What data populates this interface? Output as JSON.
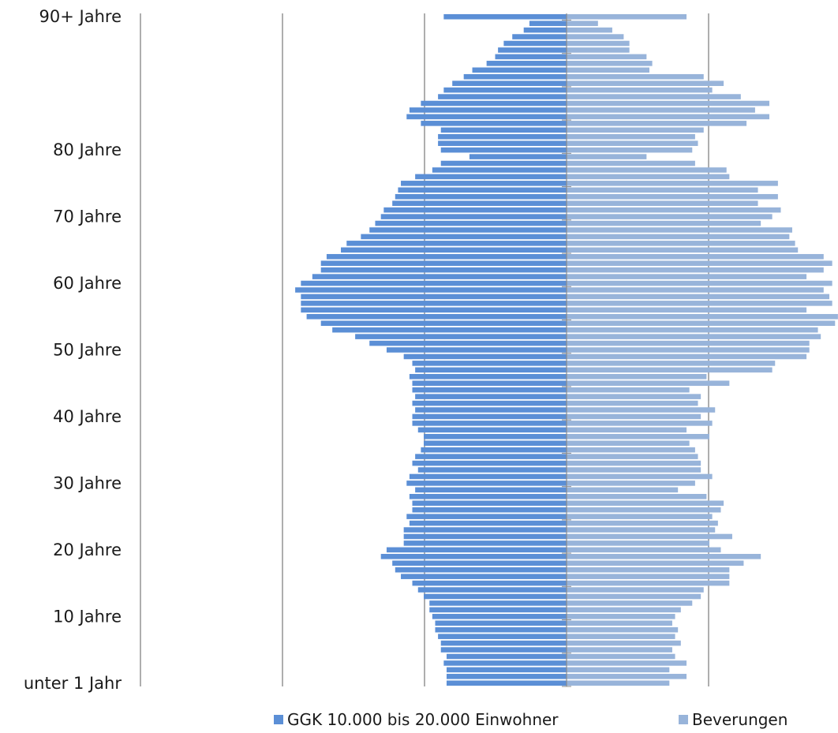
{
  "colors": {
    "series_left": "#5b8fd6",
    "series_right": "#98b4da",
    "gridline": "#8c8c8c",
    "axis_text": "#1a1a1a"
  },
  "chart_data": {
    "type": "bar",
    "orientation": "horizontal",
    "layout": "population-pyramid",
    "title": "",
    "xlabel": "",
    "ylabel": "",
    "x_tick_labels_visible": false,
    "grid": true,
    "legend_position": "bottom",
    "y_tick_labels": [
      "unter 1 Jahr",
      "10 Jahre",
      "20 Jahre",
      "30 Jahre",
      "40 Jahre",
      "50 Jahre",
      "60 Jahre",
      "70 Jahre",
      "80 Jahre",
      "90+ Jahre"
    ],
    "xlim": [
      -1.0,
      1.0
    ],
    "unit_note": "values are relative shares; axis ticks unlabeled in the original",
    "series": [
      {
        "name": "GGK 10.000 bis 20.000 Einwohner",
        "side": "left",
        "values": [
          0.42,
          0.42,
          0.42,
          0.43,
          0.42,
          0.44,
          0.44,
          0.45,
          0.46,
          0.46,
          0.47,
          0.48,
          0.48,
          0.5,
          0.52,
          0.54,
          0.58,
          0.6,
          0.61,
          0.65,
          0.63,
          0.57,
          0.57,
          0.57,
          0.55,
          0.56,
          0.54,
          0.54,
          0.55,
          0.53,
          0.56,
          0.55,
          0.52,
          0.54,
          0.53,
          0.51,
          0.5,
          0.5,
          0.52,
          0.54,
          0.54,
          0.53,
          0.54,
          0.53,
          0.54,
          0.54,
          0.55,
          0.53,
          0.54,
          0.57,
          0.63,
          0.69,
          0.74,
          0.82,
          0.86,
          0.91,
          0.93,
          0.93,
          0.93,
          0.95,
          0.93,
          0.89,
          0.86,
          0.86,
          0.84,
          0.79,
          0.77,
          0.72,
          0.69,
          0.67,
          0.65,
          0.64,
          0.61,
          0.6,
          0.59,
          0.58,
          0.53,
          0.47,
          0.44,
          0.34,
          0.44,
          0.45,
          0.45,
          0.44,
          0.51,
          0.56,
          0.55,
          0.51,
          0.45,
          0.43,
          0.4,
          0.36,
          0.33,
          0.28,
          0.25,
          0.24,
          0.22,
          0.19,
          0.15,
          0.13,
          0.43
        ]
      },
      {
        "name": "Beverungen",
        "side": "right",
        "values": [
          0.36,
          0.42,
          0.36,
          0.42,
          0.38,
          0.37,
          0.4,
          0.38,
          0.39,
          0.37,
          0.38,
          0.4,
          0.44,
          0.47,
          0.48,
          0.57,
          0.57,
          0.57,
          0.62,
          0.68,
          0.54,
          0.5,
          0.58,
          0.52,
          0.53,
          0.51,
          0.54,
          0.55,
          0.49,
          0.39,
          0.45,
          0.51,
          0.47,
          0.47,
          0.46,
          0.45,
          0.43,
          0.5,
          0.42,
          0.51,
          0.47,
          0.52,
          0.46,
          0.47,
          0.43,
          0.57,
          0.49,
          0.72,
          0.73,
          0.84,
          0.85,
          0.85,
          0.89,
          0.88,
          0.94,
          0.95,
          0.84,
          0.93,
          0.92,
          0.9,
          0.93,
          0.84,
          0.9,
          0.93,
          0.9,
          0.81,
          0.8,
          0.78,
          0.79,
          0.68,
          0.72,
          0.75,
          0.67,
          0.74,
          0.67,
          0.74,
          0.57,
          0.56,
          0.45,
          0.28,
          0.44,
          0.46,
          0.45,
          0.48,
          0.63,
          0.71,
          0.66,
          0.71,
          0.61,
          0.51,
          0.55,
          0.48,
          0.29,
          0.3,
          0.28,
          0.22,
          0.22,
          0.2,
          0.16,
          0.11,
          0.42
        ]
      }
    ]
  }
}
